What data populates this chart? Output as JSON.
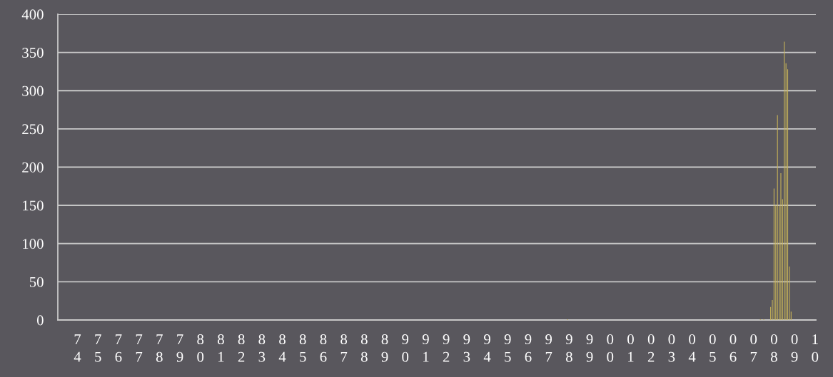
{
  "chart_data": {
    "type": "bar",
    "categories": [
      null,
      null,
      null,
      null,
      null,
      null,
      null,
      null,
      null,
      null,
      null,
      "74",
      null,
      null,
      null,
      null,
      null,
      null,
      null,
      null,
      null,
      null,
      null,
      "75",
      null,
      null,
      null,
      null,
      null,
      null,
      null,
      null,
      null,
      null,
      null,
      "76",
      null,
      null,
      null,
      null,
      null,
      null,
      null,
      null,
      null,
      null,
      null,
      "77",
      null,
      null,
      null,
      null,
      null,
      null,
      null,
      null,
      null,
      null,
      null,
      "78",
      null,
      null,
      null,
      null,
      null,
      null,
      null,
      null,
      null,
      null,
      null,
      "79",
      null,
      null,
      null,
      null,
      null,
      null,
      null,
      null,
      null,
      null,
      null,
      "80",
      null,
      null,
      null,
      null,
      null,
      null,
      null,
      null,
      null,
      null,
      null,
      "81",
      null,
      null,
      null,
      null,
      null,
      null,
      null,
      null,
      null,
      null,
      null,
      "82",
      null,
      null,
      null,
      null,
      null,
      null,
      null,
      null,
      null,
      null,
      null,
      "83",
      null,
      null,
      null,
      null,
      null,
      null,
      null,
      null,
      null,
      null,
      null,
      "84",
      null,
      null,
      null,
      null,
      null,
      null,
      null,
      null,
      null,
      null,
      null,
      "85",
      null,
      null,
      null,
      null,
      null,
      null,
      null,
      null,
      null,
      null,
      null,
      "86",
      null,
      null,
      null,
      null,
      null,
      null,
      null,
      null,
      null,
      null,
      null,
      "87",
      null,
      null,
      null,
      null,
      null,
      null,
      null,
      null,
      null,
      null,
      null,
      "88",
      null,
      null,
      null,
      null,
      null,
      null,
      null,
      null,
      null,
      null,
      null,
      "89",
      null,
      null,
      null,
      null,
      null,
      null,
      null,
      null,
      null,
      null,
      null,
      "90",
      null,
      null,
      null,
      null,
      null,
      null,
      null,
      null,
      null,
      null,
      null,
      "91",
      null,
      null,
      null,
      null,
      null,
      null,
      null,
      null,
      null,
      null,
      null,
      "92",
      null,
      null,
      null,
      null,
      null,
      null,
      null,
      null,
      null,
      null,
      null,
      "93",
      null,
      null,
      null,
      null,
      null,
      null,
      null,
      null,
      null,
      null,
      null,
      "94",
      null,
      null,
      null,
      null,
      null,
      null,
      null,
      null,
      null,
      null,
      null,
      "95",
      null,
      null,
      null,
      null,
      null,
      null,
      null,
      null,
      null,
      null,
      null,
      "96",
      null,
      null,
      null,
      null,
      null,
      null,
      null,
      null,
      null,
      null,
      null,
      "97",
      null,
      null,
      null,
      null,
      null,
      null,
      null,
      null,
      null,
      null,
      null,
      "98",
      null,
      null,
      null,
      null,
      null,
      null,
      null,
      null,
      null,
      null,
      null,
      "99",
      null,
      null,
      null,
      null,
      null,
      null,
      null,
      null,
      null,
      null,
      null,
      "00",
      null,
      null,
      null,
      null,
      null,
      null,
      null,
      null,
      null,
      null,
      null,
      "01",
      null,
      null,
      null,
      null,
      null,
      null,
      null,
      null,
      null,
      null,
      null,
      "02",
      null,
      null,
      null,
      null,
      null,
      null,
      null,
      null,
      null,
      null,
      null,
      "03",
      null,
      null,
      null,
      null,
      null,
      null,
      null,
      null,
      null,
      null,
      null,
      "04",
      null,
      null,
      null,
      null,
      null,
      null,
      null,
      null,
      null,
      null,
      null,
      "05",
      null,
      null,
      null,
      null,
      null,
      null,
      null,
      null,
      null,
      null,
      null,
      "06",
      null,
      null,
      null,
      null,
      null,
      null,
      null,
      null,
      null,
      null,
      null,
      "07",
      null,
      null,
      null,
      null,
      null,
      null,
      null,
      null,
      null,
      null,
      null,
      "08",
      null,
      null,
      null,
      null,
      null,
      null,
      null,
      null,
      null,
      null,
      null,
      "09",
      null,
      null,
      null,
      null,
      null,
      null,
      null,
      null,
      null,
      null,
      null,
      "10"
    ],
    "values": [
      0,
      0,
      0,
      0,
      0,
      0,
      0,
      0,
      0,
      0,
      0,
      0,
      0,
      0,
      0,
      0,
      0,
      0,
      0,
      0,
      0,
      0,
      0,
      0,
      0,
      0,
      0,
      0,
      0,
      0,
      0,
      0,
      0,
      0,
      0,
      0,
      0,
      0,
      0,
      0,
      0,
      0,
      0,
      0,
      0,
      0,
      0,
      0,
      0,
      0,
      0,
      0,
      0,
      0,
      0,
      0,
      0,
      0,
      0,
      0,
      0,
      0,
      0,
      0,
      0,
      0,
      0,
      0,
      0,
      0,
      0,
      0,
      0,
      0,
      0,
      0,
      0,
      0,
      0,
      0,
      0,
      0,
      0,
      0,
      0,
      0,
      0,
      0,
      0,
      0,
      0,
      0,
      0,
      0,
      0,
      0,
      0,
      0,
      0,
      0,
      0,
      0,
      0,
      0,
      0,
      0,
      0,
      0,
      0,
      0,
      0,
      0,
      0,
      0,
      0,
      0,
      0,
      0,
      0,
      0,
      0,
      0,
      0,
      0,
      0,
      0,
      0,
      0,
      0,
      0,
      0,
      0,
      0,
      0,
      0,
      0,
      0,
      0,
      0,
      0,
      0,
      0,
      0,
      0,
      0,
      0,
      0,
      0,
      0,
      0,
      0,
      0,
      0,
      0,
      0,
      0,
      0,
      0,
      0,
      0,
      0,
      0,
      0,
      0,
      0,
      0,
      0,
      0,
      0,
      0,
      0,
      0,
      0,
      0,
      0,
      0,
      0,
      0,
      0,
      0,
      0,
      0,
      0,
      0,
      0,
      0,
      0,
      0,
      0,
      0,
      0,
      0,
      0,
      0,
      0,
      0,
      0,
      0,
      0,
      0,
      0,
      0,
      0,
      0,
      0,
      0,
      0,
      0,
      0,
      0,
      0,
      0,
      0,
      0,
      0,
      0,
      0,
      0,
      0,
      0,
      0,
      0,
      0,
      0,
      0,
      0,
      0,
      0,
      0,
      0,
      0,
      0,
      0,
      0,
      0,
      0,
      0,
      0,
      0,
      0,
      0,
      0,
      0,
      0,
      0,
      0,
      0,
      0,
      0,
      0,
      0,
      0,
      0,
      0,
      0,
      0,
      0,
      0,
      0,
      0,
      0,
      0,
      0,
      0,
      0,
      0,
      0,
      0,
      0,
      0,
      0,
      0,
      0,
      0,
      0,
      0,
      0,
      0,
      0,
      0,
      0,
      0,
      0,
      0,
      0,
      0,
      0,
      0,
      0,
      0,
      0,
      0,
      0,
      0,
      0,
      0,
      0,
      0,
      1,
      0,
      0,
      0,
      0,
      0,
      0,
      0,
      0,
      0,
      0,
      0,
      0,
      0,
      0,
      0,
      0,
      0,
      0,
      0,
      0,
      0,
      0,
      0,
      0,
      0,
      0,
      0,
      0,
      0,
      0,
      0,
      0,
      0,
      0,
      0,
      0,
      0,
      0,
      0,
      0,
      0,
      0,
      0,
      0,
      0,
      0,
      0,
      0,
      0,
      0,
      0,
      0,
      0,
      0,
      0,
      0,
      0,
      0,
      0,
      0,
      0,
      0,
      0,
      0,
      0,
      0,
      0,
      0,
      0,
      0,
      0,
      0,
      0,
      0,
      0,
      0,
      0,
      0,
      0,
      0,
      0,
      0,
      0,
      0,
      0,
      0,
      0,
      0,
      0,
      0,
      0,
      0,
      0,
      0,
      0,
      0,
      0,
      0,
      0,
      0,
      0,
      0,
      0,
      0,
      0,
      0,
      0,
      0,
      0,
      0,
      0,
      0,
      1,
      0,
      1,
      0,
      0,
      0,
      17,
      26,
      172,
      150,
      268,
      150,
      192,
      158,
      364,
      336,
      328,
      70,
      11,
      0,
      0,
      0,
      0,
      0,
      0,
      0,
      0,
      0,
      0,
      0,
      0,
      0,
      0
    ],
    "color": "#c9b458",
    "ylim": [
      0,
      400
    ],
    "yticks": [
      0,
      50,
      100,
      150,
      200,
      250,
      300,
      350,
      400
    ],
    "grid": "y"
  }
}
